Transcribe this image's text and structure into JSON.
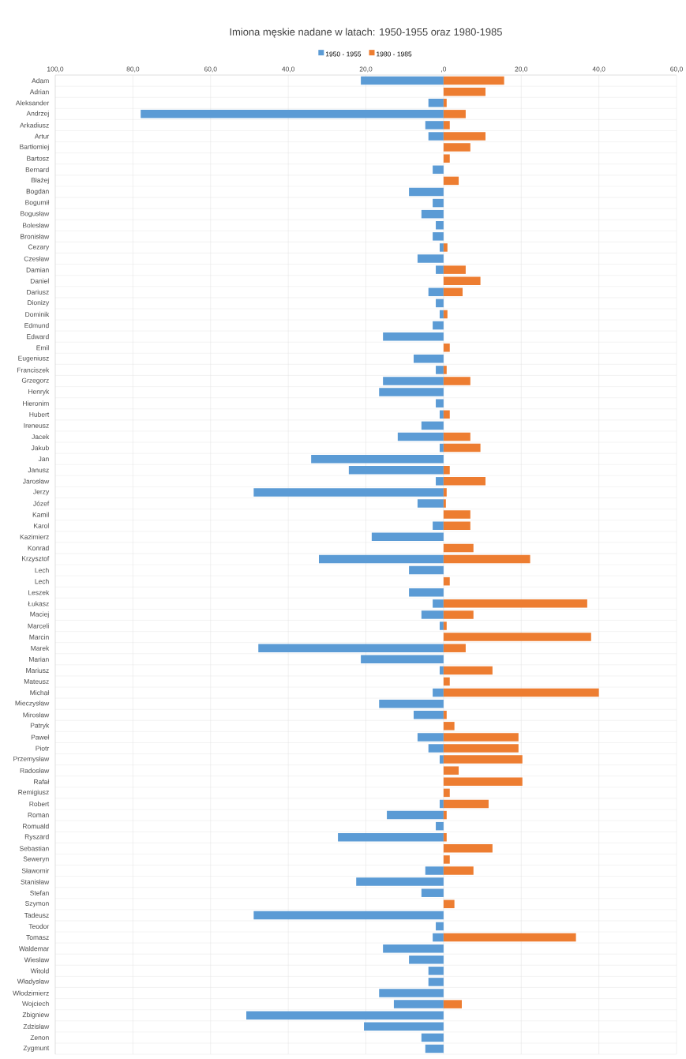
{
  "chart_data": {
    "type": "bar",
    "orientation": "horizontal",
    "title": "Imiona męskie nadane w latach: 1950-1955 oraz 1980-1985",
    "categories": [
      "Adam",
      "Adrian",
      "Aleksander",
      "Andrzej",
      "Arkadiusz",
      "Artur",
      "Bartłomiej",
      "Bartosz",
      "Bernard",
      "Błażej",
      "Bogdan",
      "Bogumił",
      "Bogusław",
      "Bolesław",
      "Bronisław",
      "Cezary",
      "Czesław",
      "Damian",
      "Daniel",
      "Dariusz",
      "Dionizy",
      "Dominik",
      "Edmund",
      "Edward",
      "Emil",
      "Eugeniusz",
      "Franciszek",
      "Grzegorz",
      "Henryk",
      "Hieronim",
      "Hubert",
      "Ireneusz",
      "Jacek",
      "Jakub",
      "Jan",
      "Janusz",
      "Jarosław",
      "Jerzy",
      "Józef",
      "Kamil",
      "Karol",
      "Kazimierz",
      "Konrad",
      "Krzysztof",
      "Lech",
      "Lech",
      "Leszek",
      "Łukasz",
      "Maciej",
      "Marceli",
      "Marcin",
      "Marek",
      "Marian",
      "Mariusz",
      "Mateusz",
      "Michał",
      "Mieczysław",
      "Mirosław",
      "Patryk",
      "Paweł",
      "Piotr",
      "Przemysław",
      "Radosław",
      "Rafał",
      "Remigiusz",
      "Robert",
      "Roman",
      "Romuald",
      "Ryszard",
      "Sebastian",
      "Seweryn",
      "Sławomir",
      "Stanisław",
      "Stefan",
      "Szymon",
      "Tadeusz",
      "Teodor",
      "Tomasz",
      "Waldemar",
      "Wiesław",
      "Witold",
      "Władysław",
      "Włodzimierz",
      "Wojciech",
      "Zbigniew",
      "Zdzisław",
      "Zenon",
      "Zygmunt"
    ],
    "series": [
      {
        "name": "1950 - 1955",
        "color": "#5b9bd5",
        "values": [
          -21.3,
          null,
          -3.9,
          -78,
          -4.7,
          -3.9,
          null,
          null,
          -2.8,
          null,
          -8.9,
          -2.8,
          -5.7,
          -2,
          -2.8,
          -1,
          -6.7,
          -2,
          null,
          -3.9,
          -2,
          -1,
          -2.8,
          -15.6,
          null,
          -7.7,
          -2,
          -15.6,
          -16.6,
          -2,
          -1,
          -5.7,
          -11.8,
          -1,
          -34.1,
          -24.4,
          -2,
          -48.9,
          -6.7,
          null,
          -2.8,
          -18.5,
          null,
          -32.1,
          -8.9,
          null,
          -8.9,
          -2.8,
          -5.7,
          -1,
          null,
          -47.7,
          -21.3,
          -1,
          null,
          -2.8,
          -16.6,
          -7.7,
          null,
          -6.7,
          -3.9,
          -1,
          null,
          null,
          null,
          -1,
          -14.6,
          -2,
          -27.2,
          null,
          null,
          -4.7,
          -22.5,
          -5.7,
          null,
          -48.9,
          -2,
          -2.8,
          -15.6,
          -8.9,
          -3.9,
          -3.9,
          -16.6,
          -12.8,
          -50.8,
          -20.5,
          -5.7,
          -4.7
        ]
      },
      {
        "name": "1980 - 1985",
        "color": "#ed7d31",
        "values": [
          15.6,
          10.8,
          0.8,
          5.7,
          1.6,
          10.8,
          6.9,
          1.6,
          null,
          3.9,
          null,
          null,
          null,
          null,
          null,
          1,
          null,
          5.7,
          9.5,
          4.9,
          null,
          1,
          null,
          null,
          1.6,
          null,
          0.8,
          6.9,
          null,
          null,
          1.6,
          null,
          6.9,
          9.5,
          null,
          1.6,
          10.8,
          0.8,
          0.6,
          6.9,
          6.9,
          null,
          7.7,
          22.3,
          null,
          1.6,
          null,
          37,
          7.7,
          0.8,
          38,
          5.7,
          null,
          12.6,
          1.6,
          40,
          null,
          0.8,
          2.8,
          19.3,
          19.3,
          20.3,
          3.9,
          20.3,
          1.6,
          11.6,
          0.8,
          null,
          0.8,
          12.6,
          1.6,
          7.7,
          null,
          null,
          2.8,
          null,
          null,
          34.1,
          null,
          null,
          null,
          null,
          null,
          4.7,
          null,
          null,
          null,
          null
        ]
      }
    ],
    "xlim": [
      -100,
      60
    ],
    "xticks": [
      {
        "value": -100,
        "label": "100,0"
      },
      {
        "value": -80,
        "label": "80,0"
      },
      {
        "value": -60,
        "label": "60,0"
      },
      {
        "value": -40,
        "label": "40,0"
      },
      {
        "value": -20,
        "label": "20,0"
      },
      {
        "value": 0,
        "label": ",0"
      },
      {
        "value": 20,
        "label": "20,0"
      },
      {
        "value": 40,
        "label": "40,0"
      },
      {
        "value": 60,
        "label": "60,0"
      }
    ],
    "grid": true,
    "legend": "top"
  }
}
